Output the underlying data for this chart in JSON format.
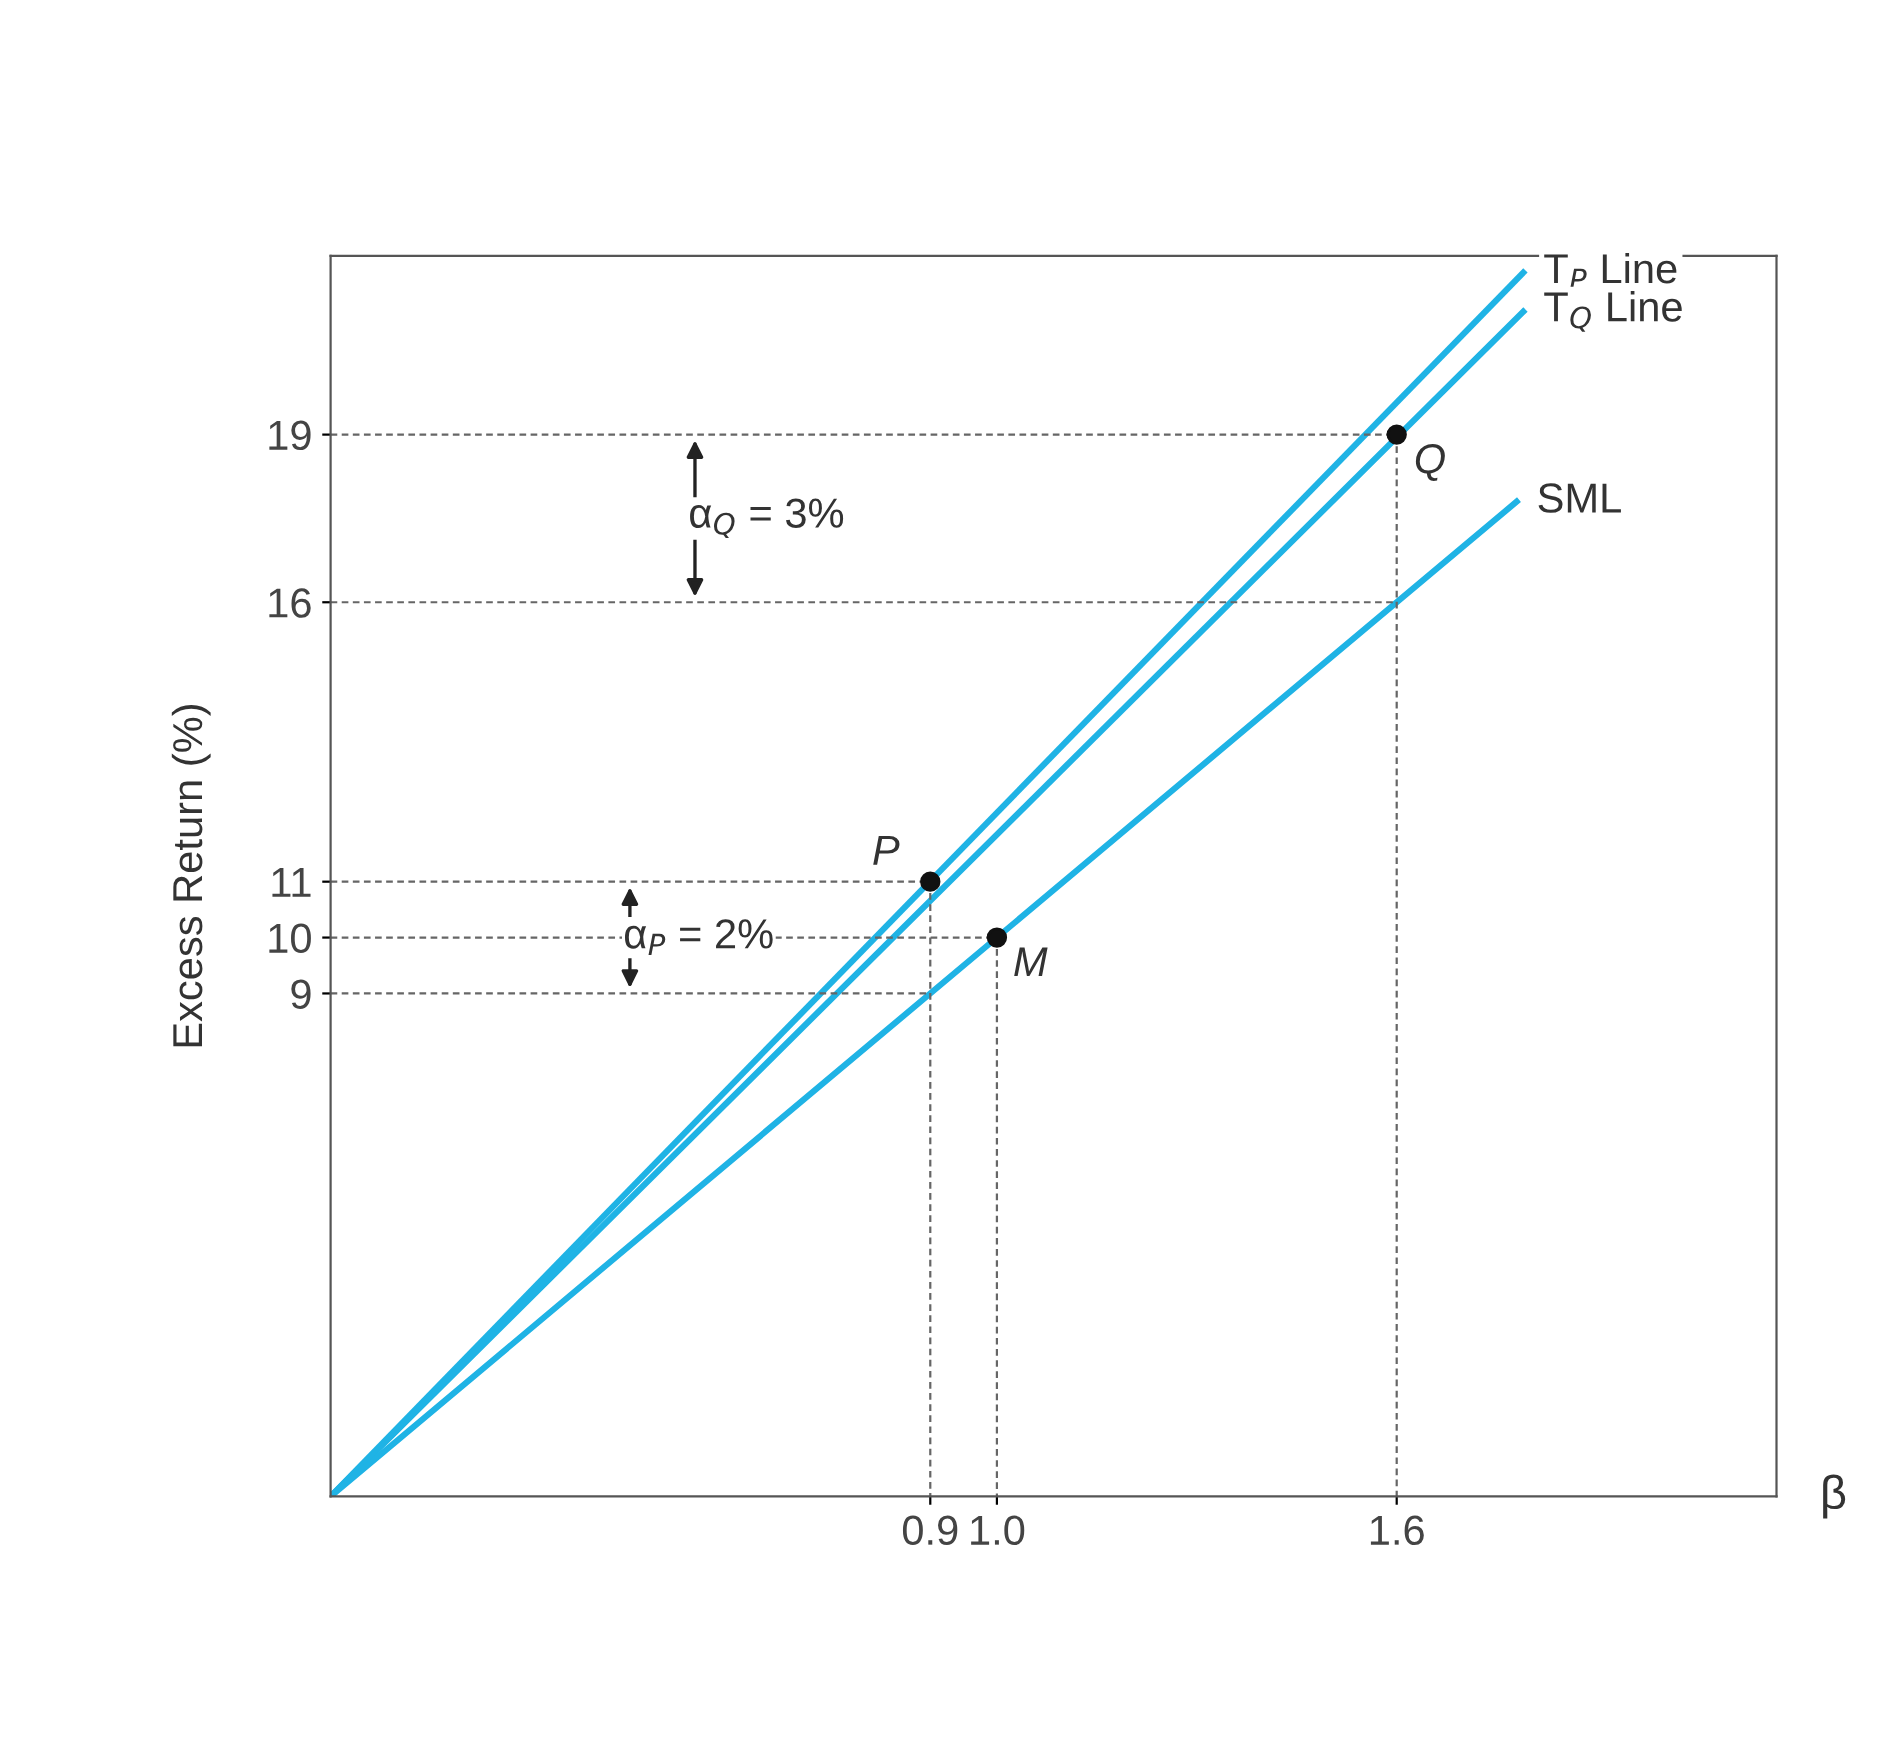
{
  "chart_data": {
    "type": "line",
    "xlabel": "β",
    "ylabel": "Excess Return (%)",
    "xlim": [
      0,
      2.17
    ],
    "ylim": [
      0,
      22.2
    ],
    "xticks": [
      0.9,
      {
        "value": 1.0,
        "label": "1.0"
      },
      1.6
    ],
    "yticks": [
      9,
      10,
      11,
      16,
      19
    ],
    "grid": false,
    "marker": "none",
    "series": [
      {
        "name": "T$_{P}$ Line",
        "color": "#1fb3e5",
        "x": [
          0,
          1.79
        ],
        "values": [
          0,
          21.9
        ]
      },
      {
        "name": "T$_{Q}$ Line",
        "color": "#1fb3e5",
        "x": [
          0,
          1.79
        ],
        "values": [
          0,
          21.2
        ]
      },
      {
        "name": "SML",
        "color": "#1fb3e5",
        "x": [
          0,
          1.78
        ],
        "values": [
          0,
          17.8
        ]
      },
      {
        "type": "scatter",
        "color": "#111111",
        "marker": "circle",
        "x": [
          0.9,
          1.0,
          1.6
        ],
        "values": [
          11,
          10,
          19
        ]
      },
      {
        "color": "#666666",
        "line_style": "dashed",
        "x": [
          0,
          1.6,
          1.6
        ],
        "values": [
          19,
          19,
          0
        ]
      },
      {
        "color": "#666666",
        "line_style": "dashed",
        "x": [
          0,
          1.6
        ],
        "values": [
          16,
          16
        ]
      },
      {
        "color": "#666666",
        "line_style": "dashed",
        "x": [
          0,
          0.9,
          0.9
        ],
        "values": [
          11,
          11,
          0
        ]
      },
      {
        "color": "#666666",
        "line_style": "dashed",
        "x": [
          0,
          1.0,
          1.0
        ],
        "values": [
          10,
          10,
          0
        ]
      },
      {
        "color": "#666666",
        "line_style": "dashed",
        "x": [
          0,
          0.9
        ],
        "values": [
          9,
          9
        ]
      }
    ],
    "annotations": [
      {
        "text": "P",
        "x": 0.9,
        "y": 11
      },
      {
        "text": "M",
        "x": 1.0,
        "y": 10
      },
      {
        "text": "Q",
        "x": 1.6,
        "y": 19
      },
      "α$_{Q}$ = 3%",
      "α$_{P}$ = 2%"
    ]
  }
}
